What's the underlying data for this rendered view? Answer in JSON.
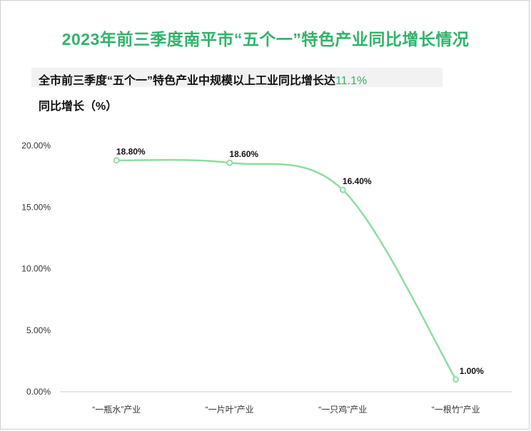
{
  "title": "2023年前三季度南平市“五个一”特色产业同比增长情况",
  "subtitle": {
    "text": "全市前三季度“五个一”特色产业中规模以上工业同比增长达",
    "highlight": "11.1%"
  },
  "colors": {
    "accent": "#2fb36a",
    "line": "#8fdc9f"
  },
  "chart_data": {
    "type": "line",
    "ylabel": "同比增长（%）",
    "xlabel": "",
    "categories": [
      "“一瓶水”产业",
      "“一片叶”产业",
      "“一只鸡”产业",
      "“一根竹”产业"
    ],
    "values": [
      18.8,
      18.6,
      16.4,
      1.0
    ],
    "data_labels": [
      "18.80%",
      "18.60%",
      "16.40%",
      "1.00%"
    ],
    "ylim": [
      0,
      20
    ],
    "yticks": [
      0,
      5,
      10,
      15,
      20
    ],
    "ytick_labels": [
      "0.00%",
      "5.00%",
      "10.00%",
      "15.00%",
      "20.00%"
    ],
    "grid": false,
    "smooth": true
  }
}
